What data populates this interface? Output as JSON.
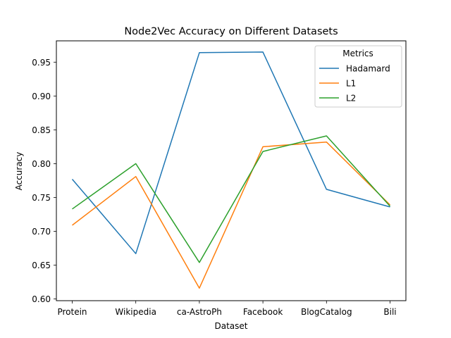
{
  "chart_data": {
    "type": "line",
    "title": "Node2Vec Accuracy on Different Datasets",
    "xlabel": "Dataset",
    "ylabel": "Accuracy",
    "categories": [
      "Protein",
      "Wikipedia",
      "ca-AstroPh",
      "Facebook",
      "BlogCatalog",
      "Bili"
    ],
    "ylim": [
      0.5975,
      0.9815
    ],
    "yticks": [
      0.6,
      0.65,
      0.7,
      0.75,
      0.8,
      0.85,
      0.9,
      0.95
    ],
    "ytick_labels": [
      "0.60",
      "0.65",
      "0.70",
      "0.75",
      "0.80",
      "0.85",
      "0.90",
      "0.95"
    ],
    "grid": false,
    "legend": {
      "title": "Metrics",
      "placement": "top-right"
    },
    "series": [
      {
        "name": "Hadamard",
        "color": "#1f77b4",
        "values": [
          0.777,
          0.667,
          0.964,
          0.965,
          0.762,
          0.736
        ]
      },
      {
        "name": "L1",
        "color": "#ff7f0e",
        "values": [
          0.709,
          0.781,
          0.616,
          0.825,
          0.832,
          0.739
        ]
      },
      {
        "name": "L2",
        "color": "#2ca02c",
        "values": [
          0.733,
          0.8,
          0.654,
          0.818,
          0.841,
          0.737
        ]
      }
    ]
  }
}
